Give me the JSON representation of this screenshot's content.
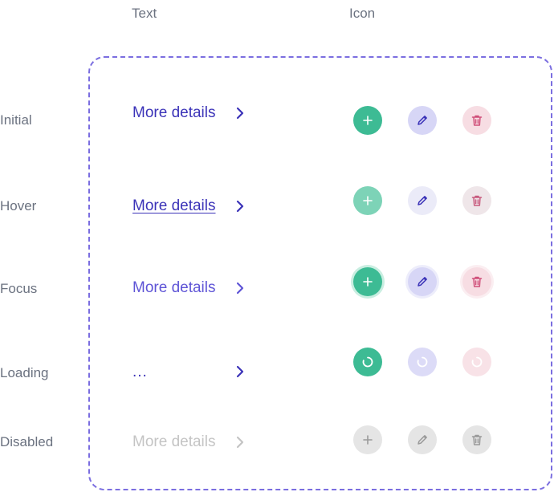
{
  "columns": {
    "text": "Text",
    "icon": "Icon"
  },
  "states": [
    {
      "label": "Initial",
      "link_text": "More details"
    },
    {
      "label": "Hover",
      "link_text": "More details"
    },
    {
      "label": "Focus",
      "link_text": "More details"
    },
    {
      "label": "Loading",
      "link_text": "..."
    },
    {
      "label": "Disabled",
      "link_text": "More details"
    }
  ],
  "icon_buttons": [
    "plus-icon",
    "pencil-icon",
    "trash-icon"
  ],
  "colors": {
    "frame": "#7b6ee0",
    "link_primary": "#3b33b8",
    "link_focus": "#5e54d6",
    "link_disabled": "#c4c4c4",
    "add_green": "#3dbb94",
    "edit_purple": "#d7d6f6",
    "delete_pink": "#f7dde3",
    "disabled_gray": "#e5e5e5"
  }
}
